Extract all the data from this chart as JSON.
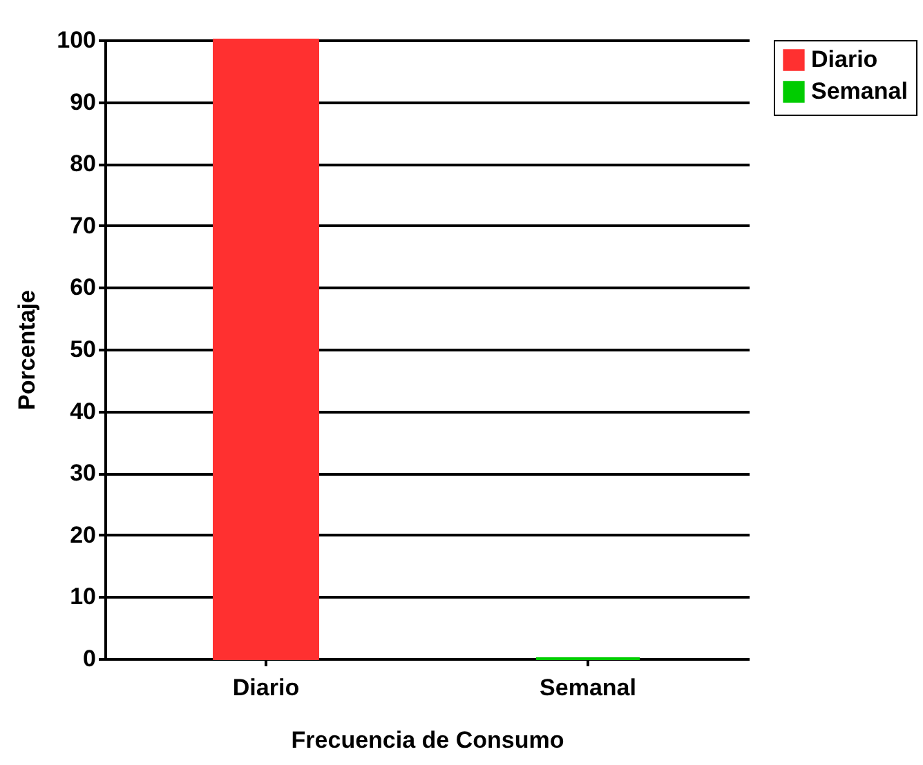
{
  "chart_data": {
    "type": "bar",
    "xlabel": "Frecuencia de Consumo",
    "ylabel": "Porcentaje",
    "categories": [
      "Diario",
      "Semanal"
    ],
    "series": [
      {
        "name": "Diario",
        "color": "#ff3030",
        "values": [
          100,
          null
        ]
      },
      {
        "name": "Semanal",
        "color": "#00cc00",
        "values": [
          null,
          0
        ]
      }
    ],
    "ylim": [
      0,
      100
    ],
    "yticks": [
      0,
      10,
      20,
      30,
      40,
      50,
      60,
      70,
      80,
      90,
      100
    ],
    "grid": "y",
    "legend": "right"
  }
}
